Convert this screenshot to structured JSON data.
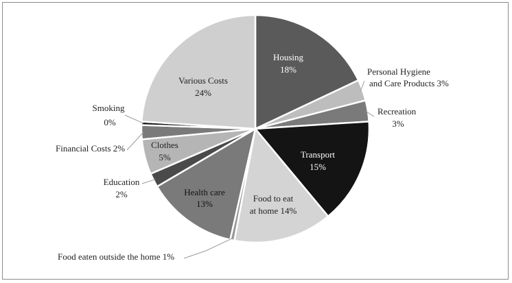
{
  "chart_data": {
    "type": "pie",
    "title": "",
    "start_angle_deg": 0,
    "direction": "clockwise",
    "slices": [
      {
        "label": "Housing",
        "value_label": "18%",
        "value": 18,
        "color": "#5a5a5a",
        "label_color": "#ffffff",
        "inside": true
      },
      {
        "label": "Personal Hygiene and Care Products",
        "value_label": "3%",
        "value": 3,
        "color": "#bdbdbd",
        "label_color": "#222222",
        "inside": false
      },
      {
        "label": "Recreation",
        "value_label": "3%",
        "value": 3,
        "color": "#7a7a7a",
        "label_color": "#222222",
        "inside": false
      },
      {
        "label": "Transport",
        "value_label": "15%",
        "value": 15,
        "color": "#141414",
        "label_color": "#ffffff",
        "inside": true
      },
      {
        "label": "Food to eat at home",
        "value_label": "14%",
        "value": 14,
        "color": "#d4d4d4",
        "label_color": "#222222",
        "inside": true
      },
      {
        "label": "Food eaten outside the home",
        "value_label": "1%",
        "value": 0.6,
        "color": "#9a9a9a",
        "label_color": "#222222",
        "inside": false
      },
      {
        "label": "Health care",
        "value_label": "13%",
        "value": 13,
        "color": "#7a7a7a",
        "label_color": "#111111",
        "inside": true
      },
      {
        "label": "Education",
        "value_label": "2%",
        "value": 2,
        "color": "#4a4a4a",
        "label_color": "#222222",
        "inside": false
      },
      {
        "label": "Clothes",
        "value_label": "5%",
        "value": 5,
        "color": "#b5b5b5",
        "label_color": "#222222",
        "inside": true
      },
      {
        "label": "Financial Costs",
        "value_label": "2%",
        "value": 2,
        "color": "#7a7a7a",
        "label_color": "#222222",
        "inside": false
      },
      {
        "label": "Smoking",
        "value_label": "0%",
        "value": 0.5,
        "color": "#1a1a1a",
        "label_color": "#222222",
        "inside": false
      },
      {
        "label": "Various Costs",
        "value_label": "24%",
        "value": 24,
        "color": "#cfcfcf",
        "label_color": "#222222",
        "inside": true
      }
    ],
    "labels": {
      "housing": [
        "Housing",
        "18%"
      ],
      "hygiene": [
        "Personal Hygiene",
        "and Care Products 3%"
      ],
      "recreation": [
        "Recreation",
        "3%"
      ],
      "transport": [
        "Transport",
        "15%"
      ],
      "food_home": [
        "Food to eat",
        "at home 14%"
      ],
      "food_out": [
        "Food eaten outside the home 1%"
      ],
      "health": [
        "Health care",
        "13%"
      ],
      "education": [
        "Education",
        "2%"
      ],
      "clothes": [
        "Clothes",
        "5%"
      ],
      "financial": [
        "Financial Costs 2%"
      ],
      "smoking": [
        "Smoking",
        "0%"
      ],
      "various": [
        "Various Costs",
        "24%"
      ]
    }
  }
}
